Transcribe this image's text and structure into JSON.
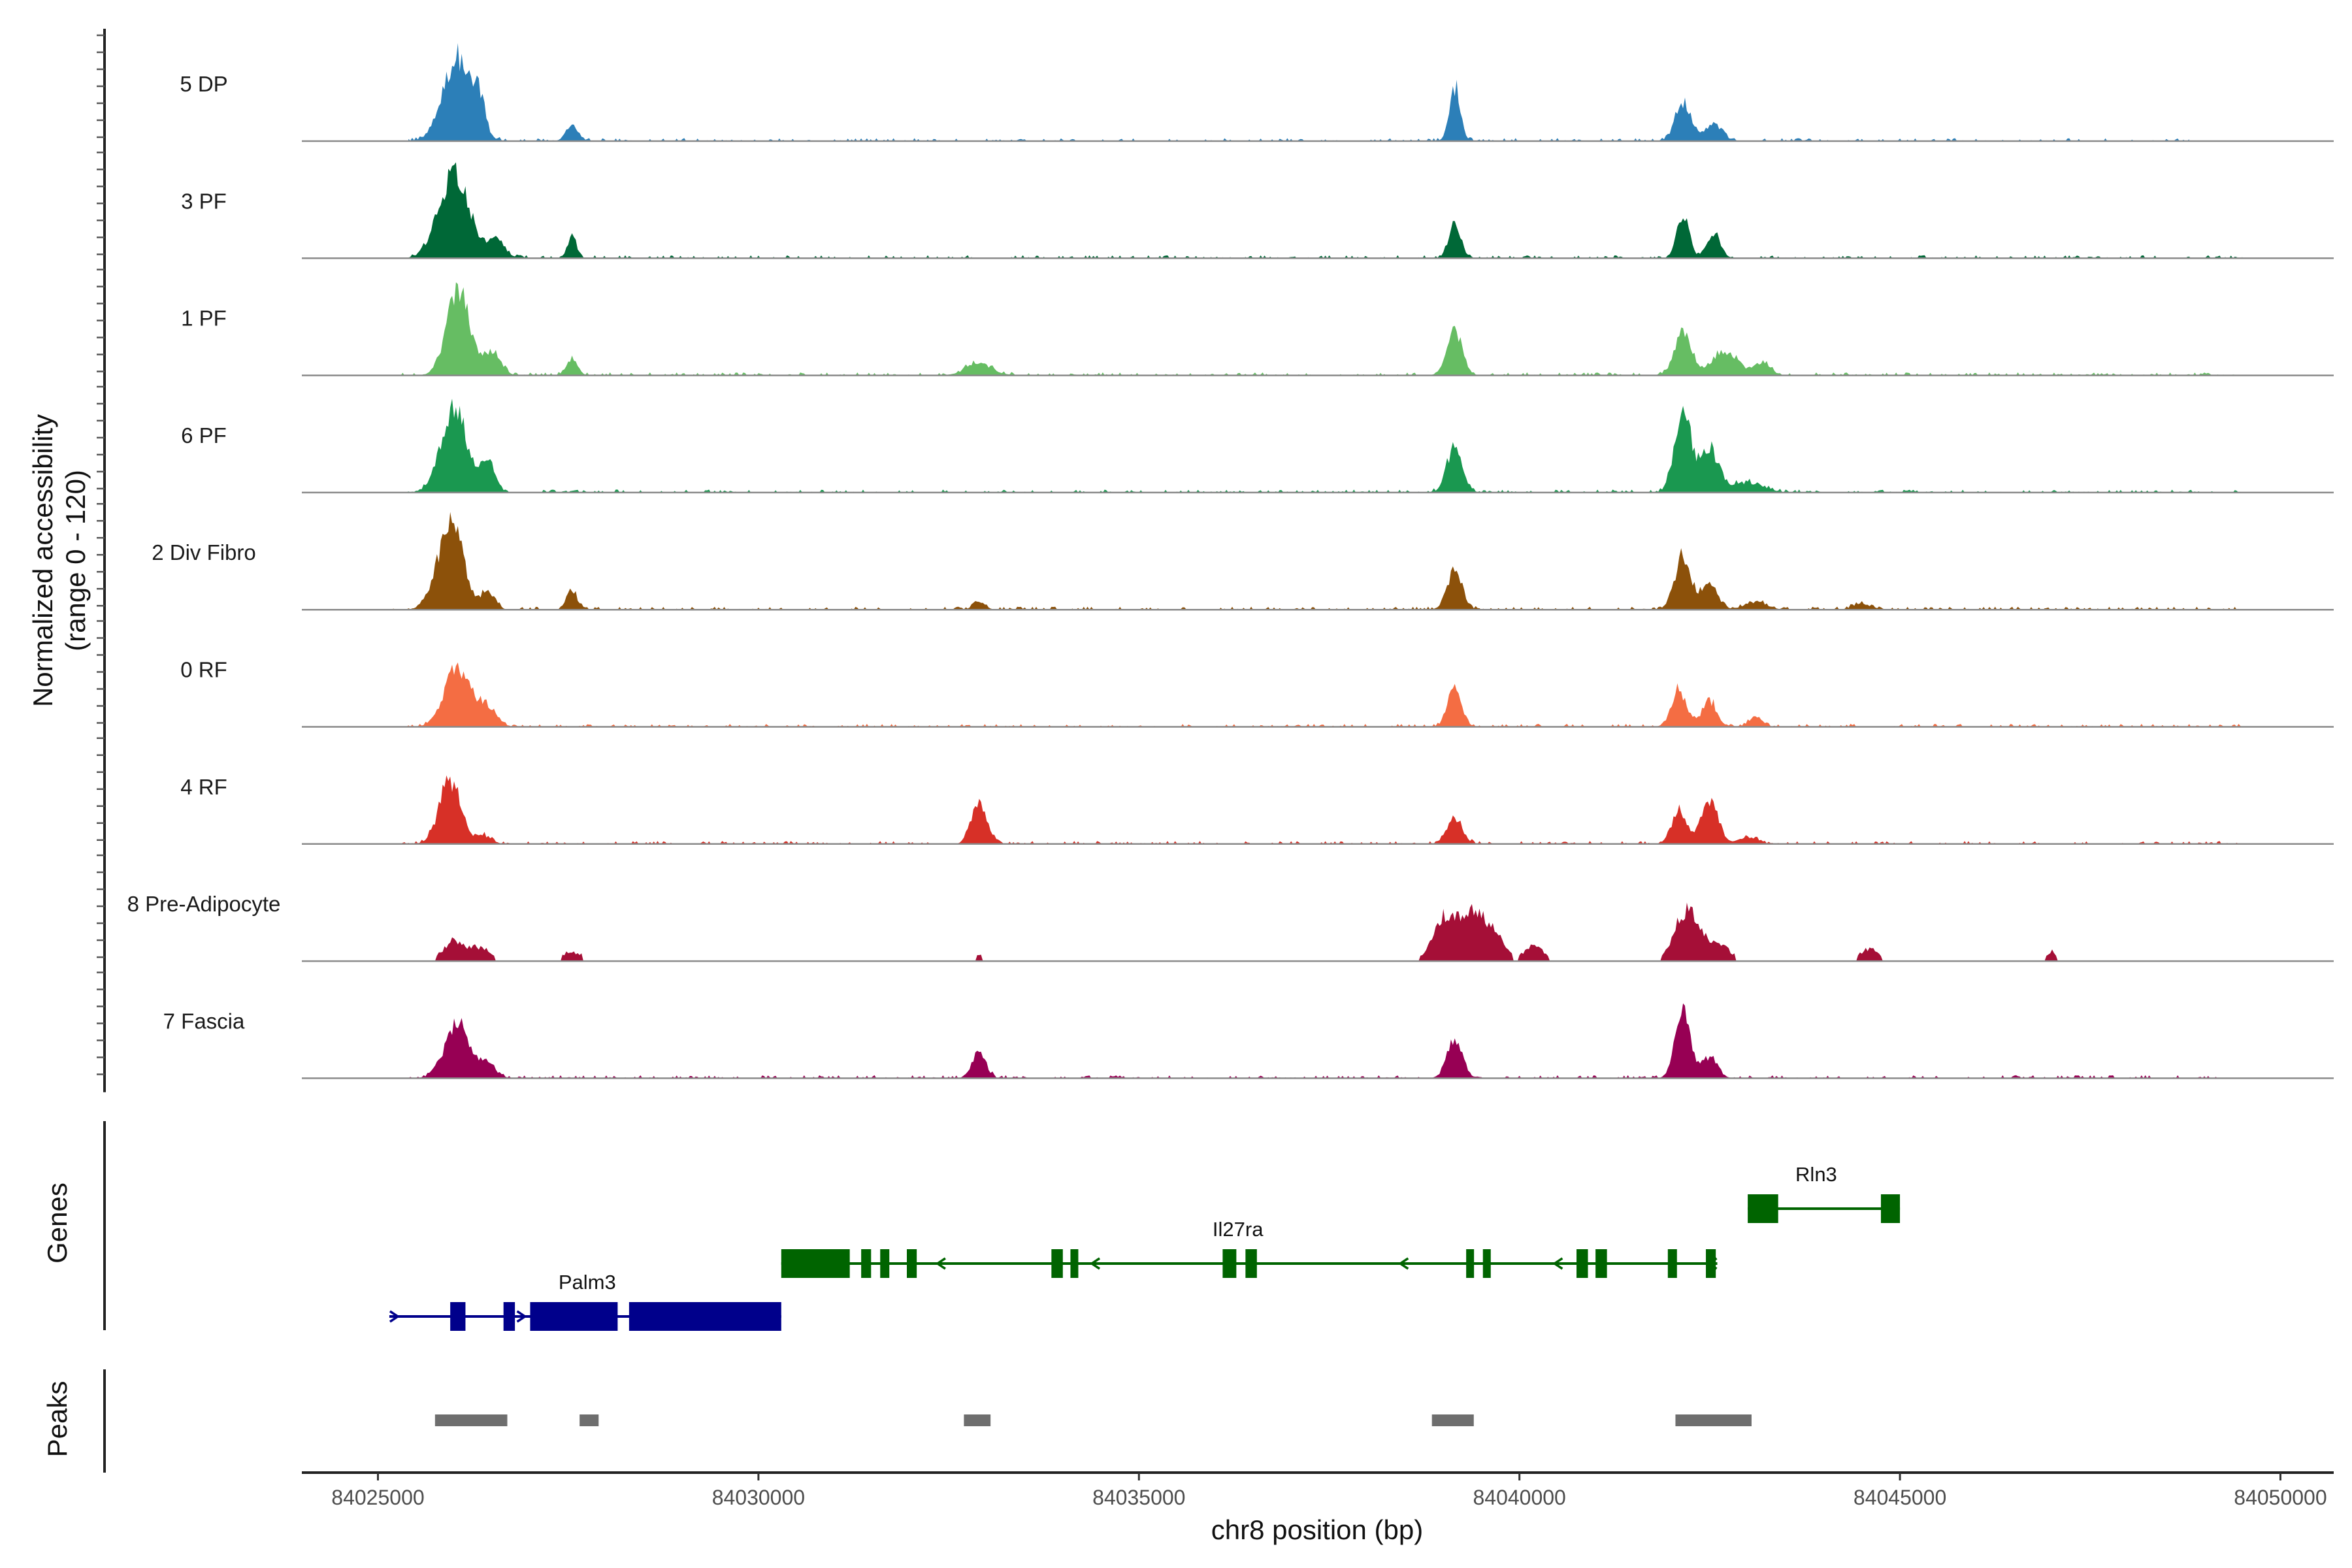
{
  "chart_data": {
    "type": "coverage",
    "chromosome": "chr8",
    "xlabel": "chr8 position (bp)",
    "ylabel_line1": "Normalized accessibility",
    "ylabel_line2": "(range 0 - 120)",
    "x_range": [
      84024000,
      84050700
    ],
    "x_ticks": [
      84025000,
      84030000,
      84035000,
      84040000,
      84045000,
      84050000
    ],
    "x_tick_labels": [
      "84025000",
      "84030000",
      "84035000",
      "84040000",
      "84045000",
      "84050000"
    ],
    "y_range": [
      0,
      120
    ],
    "panel_labels": {
      "genes": "Genes",
      "peaks": "Peaks"
    },
    "tracks": [
      {
        "name": "5 DP",
        "color": "#2c7fb8",
        "extent": [
          84025400,
          84048800
        ],
        "peaks": [
          [
            84026050,
            0.98,
            190
          ],
          [
            84026350,
            0.32,
            60
          ],
          [
            84027550,
            0.18,
            80
          ],
          [
            84039150,
            0.62,
            70
          ],
          [
            84042150,
            0.46,
            100
          ],
          [
            84042550,
            0.2,
            110
          ]
        ]
      },
      {
        "name": "3 PF",
        "color": "#006837",
        "extent": [
          84025300,
          84049500
        ],
        "peaks": [
          [
            84026000,
            0.98,
            200
          ],
          [
            84026550,
            0.2,
            110
          ],
          [
            84027550,
            0.26,
            60
          ],
          [
            84039150,
            0.4,
            80
          ],
          [
            84042150,
            0.5,
            80
          ],
          [
            84042550,
            0.3,
            90
          ]
        ]
      },
      {
        "name": "1 PF",
        "color": "#66bd63",
        "extent": [
          84025300,
          84049500
        ],
        "peaks": [
          [
            84026050,
            0.98,
            150
          ],
          [
            84026500,
            0.28,
            110
          ],
          [
            84027550,
            0.2,
            70
          ],
          [
            84032900,
            0.14,
            170
          ],
          [
            84039150,
            0.5,
            100
          ],
          [
            84042150,
            0.5,
            110
          ],
          [
            84042700,
            0.26,
            180
          ],
          [
            84043200,
            0.16,
            100
          ]
        ]
      },
      {
        "name": "6 PF",
        "color": "#1a9850",
        "extent": [
          84025300,
          84049500
        ],
        "peaks": [
          [
            84026000,
            0.98,
            170
          ],
          [
            84026450,
            0.36,
            90
          ],
          [
            84039150,
            0.55,
            100
          ],
          [
            84042150,
            0.88,
            110
          ],
          [
            84042500,
            0.5,
            120
          ],
          [
            84043000,
            0.12,
            200
          ]
        ]
      },
      {
        "name": "2 Div Fibro",
        "color": "#8c510a",
        "extent": [
          84025200,
          84049500
        ],
        "peaks": [
          [
            84025950,
            0.98,
            170
          ],
          [
            84026450,
            0.2,
            90
          ],
          [
            84027550,
            0.22,
            70
          ],
          [
            84032900,
            0.09,
            80
          ],
          [
            84039150,
            0.44,
            100
          ],
          [
            84042150,
            0.6,
            110
          ],
          [
            84042500,
            0.3,
            100
          ],
          [
            84043100,
            0.09,
            150
          ],
          [
            84044500,
            0.07,
            120
          ]
        ]
      },
      {
        "name": "0 RF",
        "color": "#f46d43",
        "extent": [
          84025300,
          84049500
        ],
        "peaks": [
          [
            84026050,
            0.7,
            170
          ],
          [
            84026450,
            0.21,
            110
          ],
          [
            84039150,
            0.46,
            90
          ],
          [
            84042100,
            0.42,
            100
          ],
          [
            84042500,
            0.3,
            90
          ],
          [
            84043100,
            0.11,
            90
          ]
        ]
      },
      {
        "name": "4 RF",
        "color": "#d73027",
        "extent": [
          84025300,
          84049500
        ],
        "peaks": [
          [
            84025950,
            0.74,
            140
          ],
          [
            84026400,
            0.09,
            100
          ],
          [
            84032900,
            0.48,
            100
          ],
          [
            84039150,
            0.29,
            100
          ],
          [
            84042100,
            0.39,
            100
          ],
          [
            84042500,
            0.5,
            110
          ],
          [
            84043000,
            0.08,
            120
          ]
        ]
      },
      {
        "name": "8 Pre-Adipocyte",
        "color": "#a50f37",
        "extent": [
          84025300,
          84049200
        ],
        "sparse": true,
        "peaks": [
          [
            84026000,
            0.22,
            140
          ],
          [
            84026350,
            0.15,
            130
          ],
          [
            84027550,
            0.1,
            130
          ],
          [
            84032900,
            0.07,
            90
          ],
          [
            84039000,
            0.45,
            150
          ],
          [
            84039350,
            0.52,
            160
          ],
          [
            84039650,
            0.3,
            150
          ],
          [
            84040200,
            0.18,
            120
          ],
          [
            84042200,
            0.58,
            160
          ],
          [
            84042600,
            0.2,
            150
          ],
          [
            84044600,
            0.14,
            120
          ],
          [
            84047000,
            0.09,
            90
          ]
        ]
      },
      {
        "name": "7 Fascia",
        "color": "#970054",
        "extent": [
          84025400,
          84049300
        ],
        "peaks": [
          [
            84026050,
            0.62,
            170
          ],
          [
            84026450,
            0.14,
            110
          ],
          [
            84032900,
            0.3,
            90
          ],
          [
            84039150,
            0.45,
            100
          ],
          [
            84042150,
            0.78,
            100
          ],
          [
            84042500,
            0.25,
            100
          ]
        ]
      }
    ],
    "genes": [
      {
        "name": "Palm3",
        "color": "#00008b",
        "row": 3,
        "strand": "+",
        "start": 84025150,
        "end": 84030300,
        "label_pos": 84027750,
        "exons": [
          [
            84025950,
            84026150
          ],
          [
            84026650,
            84026800
          ],
          [
            84027000,
            84028150
          ],
          [
            84028300,
            84030300
          ]
        ]
      },
      {
        "name": "Il27ra",
        "color": "#006400",
        "row": 2,
        "strand": "-",
        "start": 84030300,
        "end": 84042600,
        "label_pos": 84036300,
        "exons": [
          [
            84030300,
            84031200
          ],
          [
            84031350,
            84031480
          ],
          [
            84031600,
            84031720
          ],
          [
            84031950,
            84032080
          ],
          [
            84033850,
            84034000
          ],
          [
            84034100,
            84034200
          ],
          [
            84036100,
            84036280
          ],
          [
            84036400,
            84036550
          ],
          [
            84039300,
            84039380
          ],
          [
            84039520,
            84039620
          ],
          [
            84040750,
            84040900
          ],
          [
            84041000,
            84041150
          ],
          [
            84041950,
            84042070
          ],
          [
            84042450,
            84042580
          ]
        ]
      },
      {
        "name": "Rln3",
        "color": "#006400",
        "row": 1,
        "strand": "-",
        "start": 84043000,
        "end": 84045000,
        "label_pos": 84043900,
        "exons": [
          [
            84043000,
            84043400
          ],
          [
            84044750,
            84045000
          ]
        ]
      }
    ],
    "peaks": [
      [
        84025750,
        84026700
      ],
      [
        84027650,
        84027900
      ],
      [
        84032700,
        84033050
      ],
      [
        84038850,
        84039400
      ],
      [
        84042050,
        84043050
      ]
    ]
  }
}
